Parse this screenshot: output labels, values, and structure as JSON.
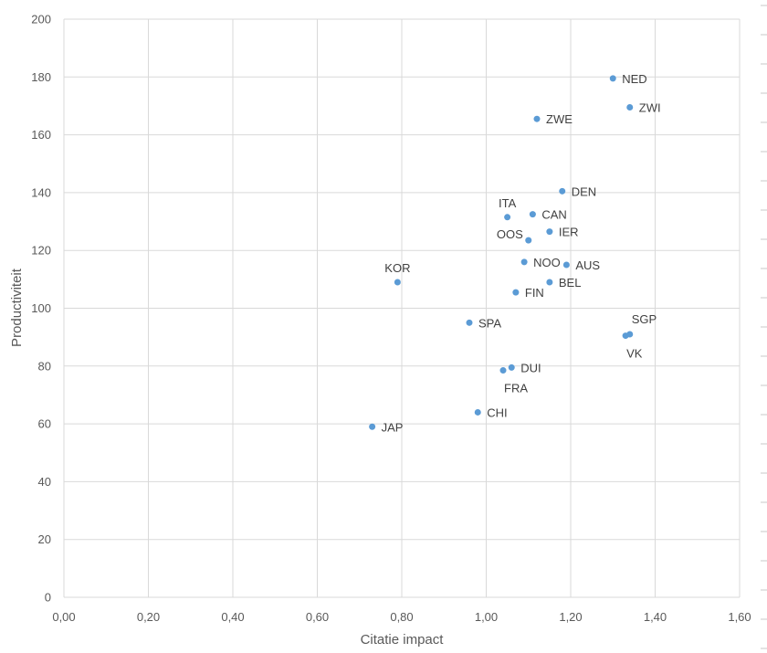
{
  "chart_data": {
    "type": "scatter",
    "title": "",
    "xlabel": "Citatie impact",
    "ylabel": "Productiviteit",
    "xlim": [
      0,
      1.6
    ],
    "ylim": [
      0,
      200
    ],
    "x_ticks": [
      "0,00",
      "0,20",
      "0,40",
      "0,60",
      "0,80",
      "1,00",
      "1,20",
      "1,40",
      "1,60"
    ],
    "y_ticks": [
      "0",
      "20",
      "40",
      "60",
      "80",
      "100",
      "120",
      "140",
      "160",
      "180",
      "200"
    ],
    "grid": true,
    "marker_color": "#5b9bd5",
    "points": [
      {
        "label": "NED",
        "x": 1.3,
        "y": 179.5,
        "pos": "right"
      },
      {
        "label": "ZWI",
        "x": 1.34,
        "y": 169.5,
        "pos": "right"
      },
      {
        "label": "ZWE",
        "x": 1.12,
        "y": 165.5,
        "pos": "right"
      },
      {
        "label": "DEN",
        "x": 1.18,
        "y": 140.5,
        "pos": "right"
      },
      {
        "label": "ITA",
        "x": 1.05,
        "y": 131.5,
        "pos": "above"
      },
      {
        "label": "CAN",
        "x": 1.11,
        "y": 132.5,
        "pos": "right"
      },
      {
        "label": "IER",
        "x": 1.15,
        "y": 126.5,
        "pos": "right"
      },
      {
        "label": "OOS",
        "x": 1.1,
        "y": 123.5,
        "pos": "left"
      },
      {
        "label": "NOO",
        "x": 1.09,
        "y": 116.0,
        "pos": "right"
      },
      {
        "label": "AUS",
        "x": 1.19,
        "y": 115.0,
        "pos": "right"
      },
      {
        "label": "KOR",
        "x": 0.79,
        "y": 109.0,
        "pos": "above"
      },
      {
        "label": "BEL",
        "x": 1.15,
        "y": 109.0,
        "pos": "right"
      },
      {
        "label": "FIN",
        "x": 1.07,
        "y": 105.5,
        "pos": "right"
      },
      {
        "label": "SPA",
        "x": 0.96,
        "y": 95.0,
        "pos": "right"
      },
      {
        "label": "SGP",
        "x": 1.34,
        "y": 91.0,
        "pos": "above-right"
      },
      {
        "label": "VK",
        "x": 1.33,
        "y": 90.5,
        "pos": "below-right"
      },
      {
        "label": "DUI",
        "x": 1.06,
        "y": 79.5,
        "pos": "right"
      },
      {
        "label": "FRA",
        "x": 1.04,
        "y": 78.5,
        "pos": "below-right"
      },
      {
        "label": "CHI",
        "x": 0.98,
        "y": 64.0,
        "pos": "right"
      },
      {
        "label": "JAP",
        "x": 0.73,
        "y": 59.0,
        "pos": "right"
      }
    ]
  }
}
